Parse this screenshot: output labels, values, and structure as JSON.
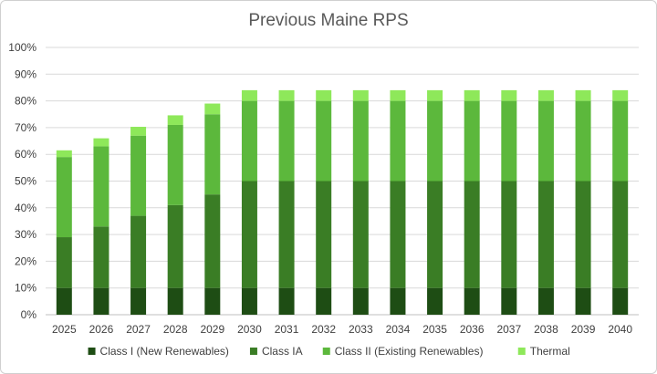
{
  "chart_data": {
    "type": "bar",
    "stacked": true,
    "title": "Previous Maine RPS",
    "xlabel": "",
    "ylabel": "",
    "ylim": [
      0,
      100
    ],
    "y_ticks": [
      "0%",
      "10%",
      "20%",
      "30%",
      "40%",
      "50%",
      "60%",
      "70%",
      "80%",
      "90%",
      "100%"
    ],
    "grid": true,
    "legend_position": "bottom",
    "categories": [
      "2025",
      "2026",
      "2027",
      "2028",
      "2029",
      "2030",
      "2031",
      "2032",
      "2033",
      "2034",
      "2035",
      "2036",
      "2037",
      "2038",
      "2039",
      "2040"
    ],
    "series": [
      {
        "name": "Class I (New Renewables)",
        "color": "#1e4d14",
        "values": [
          10,
          10,
          10,
          10,
          10,
          10,
          10,
          10,
          10,
          10,
          10,
          10,
          10,
          10,
          10,
          10
        ]
      },
      {
        "name": "Class IA",
        "color": "#3a7d25",
        "values": [
          19,
          23,
          27,
          31,
          35,
          40,
          40,
          40,
          40,
          40,
          40,
          40,
          40,
          40,
          40,
          40
        ]
      },
      {
        "name": "Class II (Existing Renewables)",
        "color": "#5cb83c",
        "values": [
          30,
          30,
          30,
          30,
          30,
          30,
          30,
          30,
          30,
          30,
          30,
          30,
          30,
          30,
          30,
          30
        ]
      },
      {
        "name": "Thermal",
        "color": "#8ee85a",
        "values": [
          2.5,
          3,
          3.3,
          3.6,
          4,
          4,
          4,
          4,
          4,
          4,
          4,
          4,
          4,
          4,
          4,
          4
        ]
      }
    ]
  }
}
